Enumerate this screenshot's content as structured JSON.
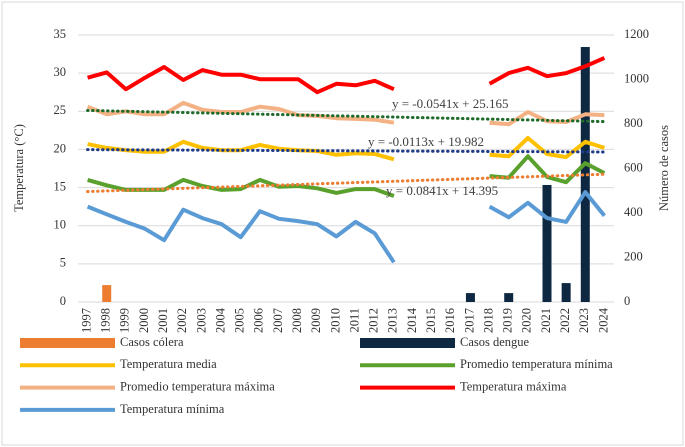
{
  "chart_data": {
    "type": "combo",
    "categories": [
      "1997",
      "1998",
      "1999",
      "2000",
      "2001",
      "2002",
      "2003",
      "2004",
      "2005",
      "2006",
      "2007",
      "2008",
      "2009",
      "2010",
      "2011",
      "2012",
      "2013",
      "2014",
      "2015",
      "2016",
      "2017",
      "2018",
      "2019",
      "2020",
      "2021",
      "2022",
      "2023",
      "2024"
    ],
    "y_label": "Temperatura (°C)",
    "y2_label": "Número de casos",
    "ylim": [
      0,
      35
    ],
    "yticks": [
      0,
      5,
      10,
      15,
      20,
      25,
      30,
      35
    ],
    "y2lim": [
      0,
      1200
    ],
    "y2ticks": [
      0,
      200,
      400,
      600,
      800,
      1000,
      1200
    ],
    "grid": true,
    "legend": "bottom",
    "series": [
      {
        "name": "Casos cólera",
        "type": "bar",
        "axis": "y2",
        "color": "#ed7d31",
        "values": [
          null,
          76,
          null,
          null,
          null,
          null,
          null,
          null,
          null,
          null,
          null,
          null,
          null,
          null,
          null,
          null,
          null,
          null,
          null,
          null,
          null,
          null,
          null,
          null,
          null,
          null,
          null,
          null
        ]
      },
      {
        "name": "Casos dengue",
        "type": "bar",
        "axis": "y2",
        "color": "#0e2841",
        "values": [
          null,
          null,
          null,
          null,
          null,
          null,
          null,
          null,
          null,
          null,
          null,
          null,
          null,
          null,
          null,
          null,
          null,
          null,
          null,
          null,
          40,
          null,
          40,
          null,
          526,
          85,
          1146,
          null
        ]
      },
      {
        "name": "Temperatura media",
        "type": "line",
        "color": "#ffc000",
        "values": [
          20.7,
          20.2,
          19.9,
          19.7,
          19.7,
          21,
          20.2,
          19.9,
          19.9,
          20.6,
          20.1,
          19.9,
          19.8,
          19.3,
          19.5,
          19.4,
          18.7,
          null,
          null,
          null,
          null,
          19.3,
          19.1,
          21.5,
          19.4,
          19,
          21,
          20.2
        ]
      },
      {
        "name": "Promedio temperatura mínima",
        "type": "line",
        "color": "#5aa02c",
        "values": [
          16,
          15.3,
          14.7,
          14.7,
          14.7,
          16,
          15.2,
          14.7,
          14.8,
          16,
          15.1,
          15.2,
          14.9,
          14.3,
          14.8,
          14.8,
          13.9,
          null,
          null,
          null,
          null,
          16.5,
          16.3,
          19.1,
          16.4,
          15.7,
          18.2,
          16.9
        ]
      },
      {
        "name": "Promedio temperatura máxima",
        "type": "line",
        "color": "#f4b183",
        "values": [
          25.6,
          24.6,
          25,
          24.6,
          24.6,
          26.1,
          25.2,
          24.9,
          24.9,
          25.6,
          25.3,
          24.5,
          24.4,
          24.1,
          24,
          23.9,
          23.5,
          null,
          null,
          null,
          null,
          23.5,
          23.3,
          24.9,
          23.7,
          23.6,
          24.6,
          24.5
        ]
      },
      {
        "name": "Temperatura máxima",
        "type": "line",
        "color": "#ff0000",
        "values": [
          29.4,
          30.1,
          27.9,
          29.4,
          30.8,
          29.1,
          30.4,
          29.8,
          29.8,
          29.2,
          29.2,
          29.2,
          27.5,
          28.6,
          28.4,
          29,
          27.9,
          null,
          null,
          null,
          null,
          28.6,
          30,
          30.7,
          29.6,
          30,
          30.9,
          32
        ]
      },
      {
        "name": "Temperatura mínima",
        "type": "line",
        "color": "#5b9bd5",
        "values": [
          12.5,
          11.5,
          10.5,
          9.6,
          8.1,
          12.1,
          11,
          10.2,
          8.5,
          11.9,
          10.9,
          10.6,
          10.2,
          8.6,
          10.5,
          9,
          5.2,
          null,
          null,
          null,
          null,
          12.5,
          11.1,
          13,
          11,
          10.5,
          14.4,
          11.3
        ]
      }
    ],
    "trendlines": [
      {
        "label": "y = -0.0541x + 25.165",
        "slope": -0.0541,
        "intercept": 25.165,
        "color": "#1e6b2a"
      },
      {
        "label": "y = -0.0113x + 19.982",
        "slope": -0.0113,
        "intercept": 19.982,
        "color": "#1f3b8a"
      },
      {
        "label": "y = 0.0841x + 14.395",
        "slope": 0.0841,
        "intercept": 14.395,
        "color": "#ed7d31"
      }
    ]
  }
}
